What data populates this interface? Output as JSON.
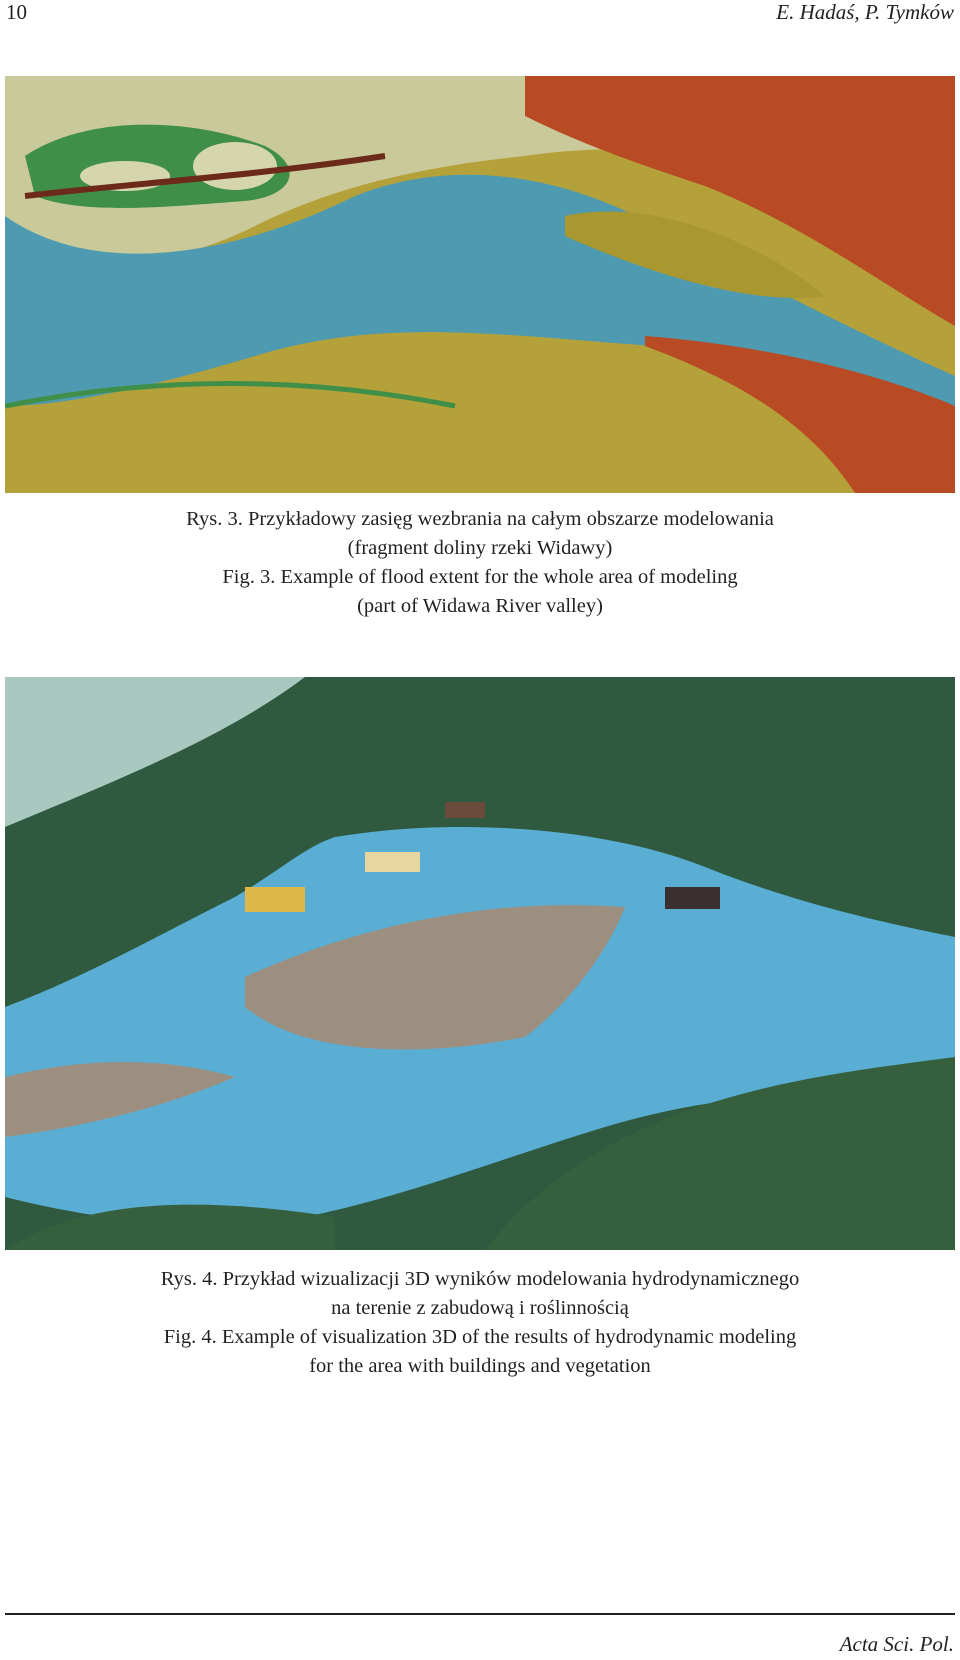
{
  "header": {
    "page_number": "10",
    "authors": "E. Hadaś, P. Tymków"
  },
  "figures": [
    {
      "caption_lines": [
        "Rys. 3. Przykładowy zasięg wezbrania na całym obszarze modelowania",
        "(fragment doliny rzeki Widawy)",
        "Fig. 3. Example of flood extent  for the whole area of modeling",
        "(part of Widawa River valley)"
      ]
    },
    {
      "caption_lines": [
        "Rys. 4. Przykład wizualizacji 3D wyników modelowania hydrodynamicznego",
        "na terenie z zabudową i roślinnością",
        "Fig. 4. Example of visualization 3D of the results of hydrodynamic modeling",
        "for the area with buildings and vegetation"
      ]
    }
  ],
  "footer": {
    "journal": "Acta Sci. Pol."
  }
}
